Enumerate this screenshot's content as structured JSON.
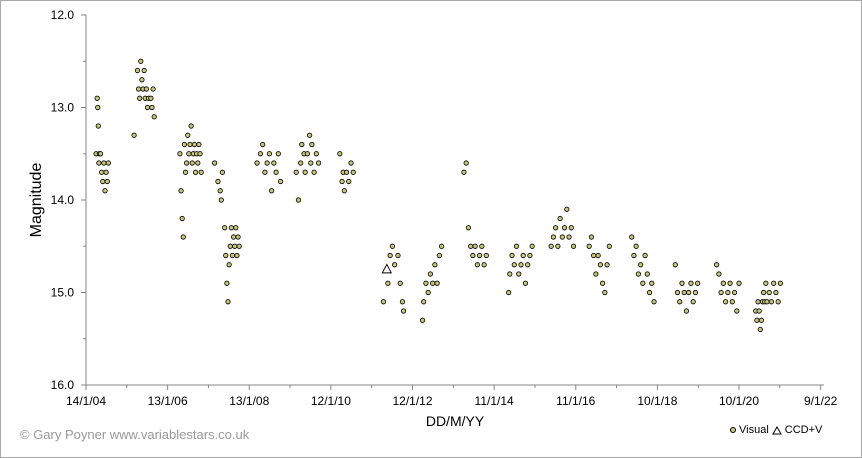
{
  "chart_data": {
    "type": "scatter",
    "title": "",
    "xlabel": "DD/M/YY",
    "ylabel": "Magnitude",
    "y_inverted": true,
    "ylim": [
      12.0,
      16.0
    ],
    "y_ticks": [
      "12.0",
      "13.0",
      "14.0",
      "15.0",
      "16.0"
    ],
    "x_range_days": [
      0,
      6600
    ],
    "x_ticks": [
      {
        "label": "14/1/04",
        "day": 0
      },
      {
        "label": "13/1/06",
        "day": 730
      },
      {
        "label": "13/1/08",
        "day": 1460
      },
      {
        "label": "12/1/10",
        "day": 2190
      },
      {
        "label": "12/1/12",
        "day": 2920
      },
      {
        "label": "11/1/14",
        "day": 3650
      },
      {
        "label": "11/1/16",
        "day": 4380
      },
      {
        "label": "10/1/18",
        "day": 5110
      },
      {
        "label": "10/1/20",
        "day": 5840
      },
      {
        "label": "9/1/22",
        "day": 6570
      }
    ],
    "series": [
      {
        "name": "Visual",
        "marker": "circle",
        "color": "#c9c77e",
        "points": [
          [
            90,
            13.5
          ],
          [
            100,
            12.9
          ],
          [
            105,
            13.0
          ],
          [
            110,
            13.2
          ],
          [
            115,
            13.6
          ],
          [
            120,
            13.5
          ],
          [
            130,
            13.5
          ],
          [
            140,
            13.7
          ],
          [
            150,
            13.8
          ],
          [
            160,
            13.6
          ],
          [
            170,
            13.9
          ],
          [
            180,
            13.7
          ],
          [
            190,
            13.8
          ],
          [
            200,
            13.6
          ],
          [
            430,
            13.3
          ],
          [
            460,
            12.6
          ],
          [
            470,
            12.8
          ],
          [
            480,
            12.9
          ],
          [
            490,
            12.5
          ],
          [
            500,
            12.7
          ],
          [
            510,
            12.8
          ],
          [
            520,
            12.6
          ],
          [
            530,
            12.9
          ],
          [
            540,
            12.8
          ],
          [
            550,
            13.0
          ],
          [
            560,
            12.9
          ],
          [
            580,
            12.9
          ],
          [
            590,
            13.0
          ],
          [
            600,
            12.8
          ],
          [
            610,
            13.1
          ],
          [
            840,
            13.5
          ],
          [
            850,
            13.9
          ],
          [
            860,
            14.2
          ],
          [
            870,
            14.4
          ],
          [
            880,
            13.4
          ],
          [
            890,
            13.7
          ],
          [
            900,
            13.6
          ],
          [
            910,
            13.3
          ],
          [
            920,
            13.5
          ],
          [
            930,
            13.4
          ],
          [
            940,
            13.2
          ],
          [
            950,
            13.6
          ],
          [
            960,
            13.5
          ],
          [
            970,
            13.4
          ],
          [
            980,
            13.7
          ],
          [
            990,
            13.5
          ],
          [
            1000,
            13.6
          ],
          [
            1010,
            13.4
          ],
          [
            1020,
            13.5
          ],
          [
            1030,
            13.7
          ],
          [
            1150,
            13.6
          ],
          [
            1180,
            13.8
          ],
          [
            1200,
            13.9
          ],
          [
            1210,
            14.0
          ],
          [
            1220,
            13.7
          ],
          [
            1240,
            14.3
          ],
          [
            1250,
            14.6
          ],
          [
            1260,
            14.9
          ],
          [
            1270,
            15.1
          ],
          [
            1280,
            14.7
          ],
          [
            1290,
            14.5
          ],
          [
            1300,
            14.3
          ],
          [
            1310,
            14.6
          ],
          [
            1320,
            14.4
          ],
          [
            1330,
            14.5
          ],
          [
            1340,
            14.3
          ],
          [
            1350,
            14.6
          ],
          [
            1360,
            14.4
          ],
          [
            1370,
            14.5
          ],
          [
            1530,
            13.6
          ],
          [
            1560,
            13.5
          ],
          [
            1580,
            13.4
          ],
          [
            1600,
            13.7
          ],
          [
            1620,
            13.6
          ],
          [
            1640,
            13.5
          ],
          [
            1660,
            13.9
          ],
          [
            1680,
            13.6
          ],
          [
            1700,
            13.7
          ],
          [
            1720,
            13.5
          ],
          [
            1740,
            13.8
          ],
          [
            1880,
            13.7
          ],
          [
            1900,
            14.0
          ],
          [
            1920,
            13.6
          ],
          [
            1930,
            13.4
          ],
          [
            1950,
            13.5
          ],
          [
            1960,
            13.7
          ],
          [
            1980,
            13.5
          ],
          [
            2000,
            13.3
          ],
          [
            2010,
            13.6
          ],
          [
            2020,
            13.4
          ],
          [
            2040,
            13.7
          ],
          [
            2060,
            13.5
          ],
          [
            2080,
            13.6
          ],
          [
            2270,
            13.5
          ],
          [
            2290,
            13.8
          ],
          [
            2300,
            13.7
          ],
          [
            2310,
            13.9
          ],
          [
            2330,
            13.7
          ],
          [
            2350,
            13.8
          ],
          [
            2370,
            13.6
          ],
          [
            2390,
            13.7
          ],
          [
            2660,
            15.1
          ],
          [
            2700,
            14.9
          ],
          [
            2720,
            14.6
          ],
          [
            2740,
            14.5
          ],
          [
            2760,
            14.7
          ],
          [
            2790,
            14.6
          ],
          [
            2810,
            14.9
          ],
          [
            2830,
            15.1
          ],
          [
            2840,
            15.2
          ],
          [
            3010,
            15.3
          ],
          [
            3020,
            15.1
          ],
          [
            3040,
            14.9
          ],
          [
            3060,
            15.0
          ],
          [
            3080,
            14.8
          ],
          [
            3100,
            14.9
          ],
          [
            3120,
            14.7
          ],
          [
            3140,
            14.9
          ],
          [
            3160,
            14.6
          ],
          [
            3180,
            14.5
          ],
          [
            3380,
            13.7
          ],
          [
            3400,
            13.6
          ],
          [
            3420,
            14.3
          ],
          [
            3440,
            14.5
          ],
          [
            3460,
            14.6
          ],
          [
            3480,
            14.5
          ],
          [
            3500,
            14.7
          ],
          [
            3520,
            14.6
          ],
          [
            3540,
            14.5
          ],
          [
            3560,
            14.7
          ],
          [
            3580,
            14.6
          ],
          [
            3780,
            15.0
          ],
          [
            3790,
            14.8
          ],
          [
            3810,
            14.6
          ],
          [
            3830,
            14.7
          ],
          [
            3850,
            14.5
          ],
          [
            3870,
            14.8
          ],
          [
            3890,
            14.7
          ],
          [
            3910,
            14.6
          ],
          [
            3930,
            14.9
          ],
          [
            3950,
            14.7
          ],
          [
            3970,
            14.6
          ],
          [
            3990,
            14.5
          ],
          [
            4160,
            14.5
          ],
          [
            4180,
            14.4
          ],
          [
            4200,
            14.3
          ],
          [
            4220,
            14.5
          ],
          [
            4240,
            14.2
          ],
          [
            4260,
            14.4
          ],
          [
            4280,
            14.3
          ],
          [
            4300,
            14.1
          ],
          [
            4320,
            14.4
          ],
          [
            4340,
            14.3
          ],
          [
            4360,
            14.5
          ],
          [
            4500,
            14.5
          ],
          [
            4520,
            14.4
          ],
          [
            4540,
            14.6
          ],
          [
            4560,
            14.8
          ],
          [
            4580,
            14.6
          ],
          [
            4600,
            14.7
          ],
          [
            4620,
            14.9
          ],
          [
            4640,
            15.0
          ],
          [
            4660,
            14.7
          ],
          [
            4680,
            14.5
          ],
          [
            4880,
            14.4
          ],
          [
            4900,
            14.6
          ],
          [
            4920,
            14.5
          ],
          [
            4940,
            14.8
          ],
          [
            4960,
            14.7
          ],
          [
            4980,
            14.9
          ],
          [
            5000,
            14.6
          ],
          [
            5020,
            14.8
          ],
          [
            5040,
            15.0
          ],
          [
            5060,
            14.9
          ],
          [
            5080,
            15.1
          ],
          [
            5270,
            14.7
          ],
          [
            5290,
            15.0
          ],
          [
            5310,
            15.1
          ],
          [
            5330,
            14.9
          ],
          [
            5350,
            15.0
          ],
          [
            5370,
            15.2
          ],
          [
            5390,
            15.0
          ],
          [
            5410,
            14.9
          ],
          [
            5430,
            15.1
          ],
          [
            5450,
            15.0
          ],
          [
            5470,
            14.9
          ],
          [
            5640,
            14.7
          ],
          [
            5660,
            14.8
          ],
          [
            5680,
            15.0
          ],
          [
            5700,
            14.9
          ],
          [
            5720,
            15.1
          ],
          [
            5740,
            15.0
          ],
          [
            5760,
            14.9
          ],
          [
            5780,
            15.1
          ],
          [
            5800,
            15.0
          ],
          [
            5820,
            15.2
          ],
          [
            5840,
            14.9
          ],
          [
            5990,
            15.2
          ],
          [
            6000,
            15.3
          ],
          [
            6010,
            15.1
          ],
          [
            6020,
            15.2
          ],
          [
            6030,
            15.4
          ],
          [
            6040,
            15.3
          ],
          [
            6050,
            15.1
          ],
          [
            6060,
            15.0
          ],
          [
            6070,
            15.1
          ],
          [
            6080,
            14.9
          ],
          [
            6090,
            15.1
          ],
          [
            6110,
            15.0
          ],
          [
            6130,
            15.1
          ],
          [
            6150,
            14.9
          ],
          [
            6170,
            15.0
          ],
          [
            6190,
            15.1
          ],
          [
            6210,
            14.9
          ]
        ]
      },
      {
        "name": "CCD+V",
        "marker": "triangle",
        "color": "#ffffff",
        "points": [
          [
            2690,
            14.75
          ]
        ]
      }
    ],
    "legend": [
      "Visual",
      "CCD+V"
    ],
    "legend_position": "bottom-right",
    "grid": false
  },
  "footer": {
    "copyright": "© Gary Poyner  www.variablestars.co.uk",
    "legend_visual": "Visual",
    "legend_ccd": "CCD+V"
  }
}
